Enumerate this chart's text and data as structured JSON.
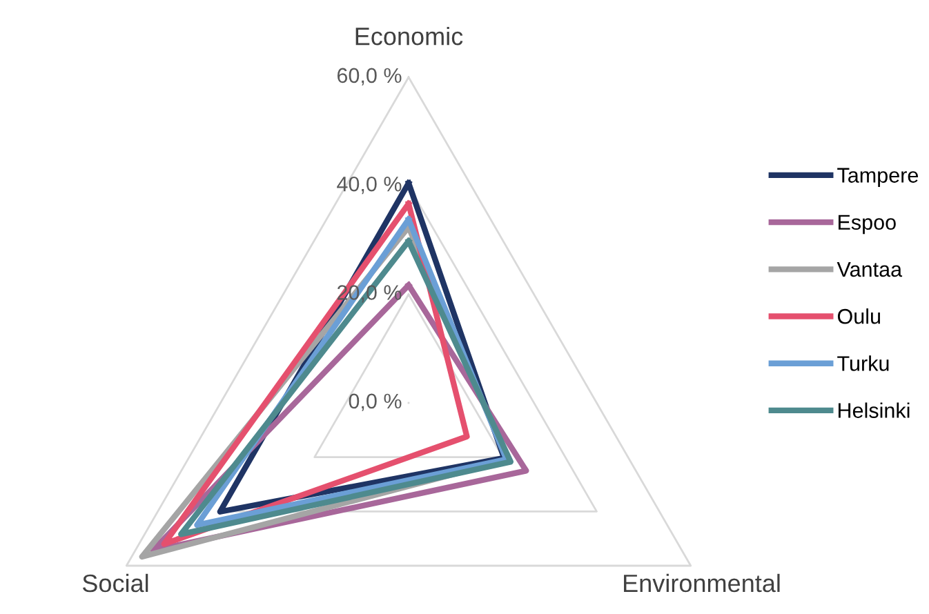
{
  "chart_data": {
    "type": "radar",
    "categories": [
      "Economic",
      "Environmental",
      "Social"
    ],
    "ylim": [
      0,
      60
    ],
    "yticks": [
      {
        "value": 0,
        "label": "0,0 %"
      },
      {
        "value": 20,
        "label": "20,0 %"
      },
      {
        "value": 40,
        "label": "40,0 %"
      },
      {
        "value": 60,
        "label": "60,0 %"
      }
    ],
    "grid": true,
    "legend": "right",
    "marker": "none",
    "line_style": "solid",
    "series": [
      {
        "name": "Tampere",
        "color": "#1f3464",
        "values": [
          40.5,
          20.3,
          40.1
        ]
      },
      {
        "name": "Espoo",
        "color": "#a8679a",
        "values": [
          21.7,
          25,
          54.4
        ]
      },
      {
        "name": "Vantaa",
        "color": "#a5a5a5",
        "values": [
          32.4,
          21,
          56.7
        ]
      },
      {
        "name": "Oulu",
        "color": "#e5506e",
        "values": [
          36.7,
          12.4,
          52
        ]
      },
      {
        "name": "Turku",
        "color": "#6b9fd6",
        "values": [
          33.8,
          20.8,
          45
        ]
      },
      {
        "name": "Helsinki",
        "color": "#4e8a8e",
        "values": [
          29.8,
          21.7,
          48.4
        ]
      }
    ]
  }
}
